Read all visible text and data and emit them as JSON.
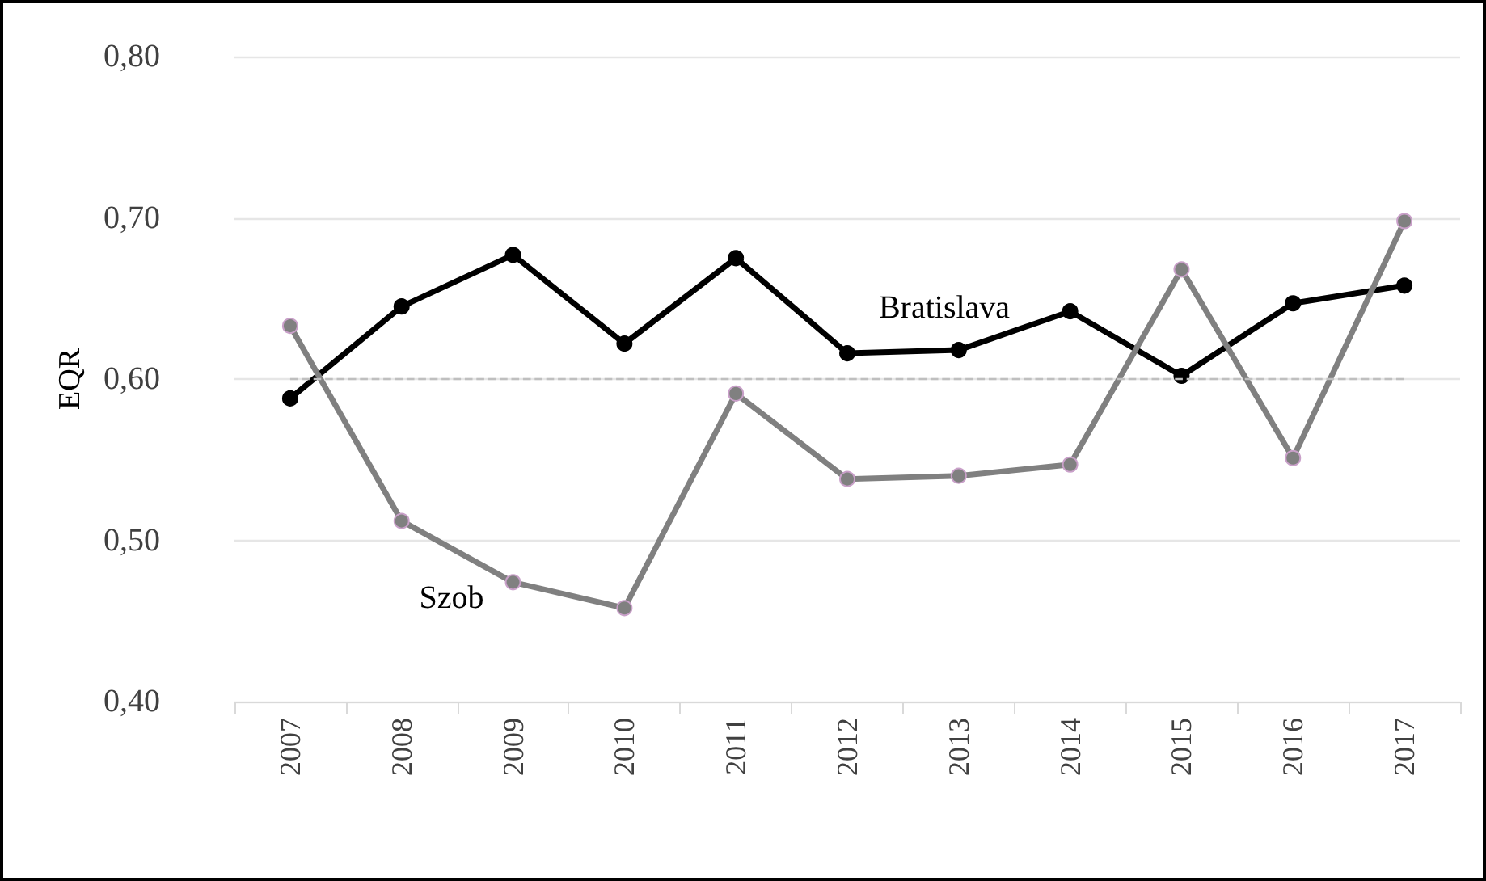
{
  "chart_data": {
    "type": "line",
    "ylabel": "EQR",
    "categories": [
      "2007",
      "2008",
      "2009",
      "2010",
      "2011",
      "2012",
      "2013",
      "2014",
      "2015",
      "2016",
      "2017"
    ],
    "series": [
      {
        "name": "Bratislava",
        "color": "#000000",
        "values": [
          0.588,
          0.645,
          0.677,
          0.622,
          0.675,
          0.616,
          0.618,
          0.642,
          0.602,
          0.647,
          0.658
        ]
      },
      {
        "name": "Szob",
        "color": "#808080",
        "values": [
          0.633,
          0.512,
          0.474,
          0.458,
          0.591,
          0.538,
          0.54,
          0.547,
          0.668,
          0.551,
          0.698
        ]
      }
    ],
    "ylim": [
      0.4,
      0.8
    ],
    "yticks": [
      {
        "value": 0.4,
        "label": "0,40"
      },
      {
        "value": 0.5,
        "label": "0,50"
      },
      {
        "value": 0.6,
        "label": "0,60"
      },
      {
        "value": 0.7,
        "label": "0,70"
      },
      {
        "value": 0.8,
        "label": "0,80"
      }
    ],
    "grid": "y",
    "marker": "circle",
    "line_style": "solid",
    "ref_lines": [
      {
        "axis": "y",
        "value": 0.6,
        "color": "#bfbfbf",
        "line_style": "dashed"
      }
    ]
  }
}
